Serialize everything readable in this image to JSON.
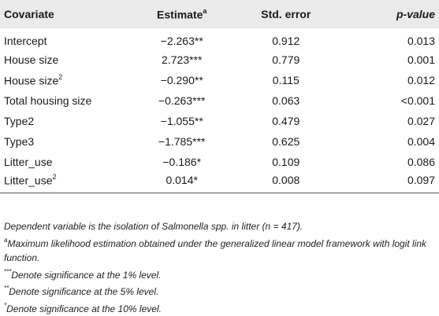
{
  "table": {
    "headers": {
      "covariate": "Covariate",
      "estimate": "Estimate",
      "estimate_sup": "a",
      "std_error": "Std. error",
      "p_value": "p-value"
    },
    "rows": [
      {
        "covariate": "Intercept",
        "cov_sup": "",
        "estimate": "−2.263",
        "stars": "**",
        "std_error": "0.912",
        "p_value": "0.013"
      },
      {
        "covariate": "House size",
        "cov_sup": "",
        "estimate": "2.723",
        "stars": "***",
        "std_error": "0.779",
        "p_value": "0.001"
      },
      {
        "covariate": "House size",
        "cov_sup": "2",
        "estimate": "−0.290",
        "stars": "**",
        "std_error": "0.115",
        "p_value": "0.012"
      },
      {
        "covariate": "Total housing size",
        "cov_sup": "",
        "estimate": "−0.263",
        "stars": "***",
        "std_error": "0.063",
        "p_value": "<0.001"
      },
      {
        "covariate": "Type2",
        "cov_sup": "",
        "estimate": "−1.055",
        "stars": "**",
        "std_error": "0.479",
        "p_value": "0.027"
      },
      {
        "covariate": "Type3",
        "cov_sup": "",
        "estimate": "−1.785",
        "stars": "***",
        "std_error": "0.625",
        "p_value": "0.004"
      },
      {
        "covariate": "Litter_use",
        "cov_sup": "",
        "estimate": "−0.186",
        "stars": "*",
        "std_error": "0.109",
        "p_value": "0.086"
      },
      {
        "covariate": "Litter_use",
        "cov_sup": "2",
        "estimate": "0.014",
        "stars": "*",
        "std_error": "0.008",
        "p_value": "0.097"
      }
    ]
  },
  "notes": {
    "dependent_pre": "Dependent variable is the isolation of ",
    "dependent_genus": "Salmonella",
    "dependent_post": " spp. in litter (n = 417).",
    "a_mark": "a",
    "a_text": "Maximum likelihood estimation obtained under the generalized linear model framework with logit link function.",
    "three_star_mark": "***",
    "three_star_text": "Denote significance at the 1% level.",
    "two_star_mark": "**",
    "two_star_text": "Denote significance at the 5% level.",
    "one_star_mark": "*",
    "one_star_text": "Denote significance at the 10% level."
  }
}
